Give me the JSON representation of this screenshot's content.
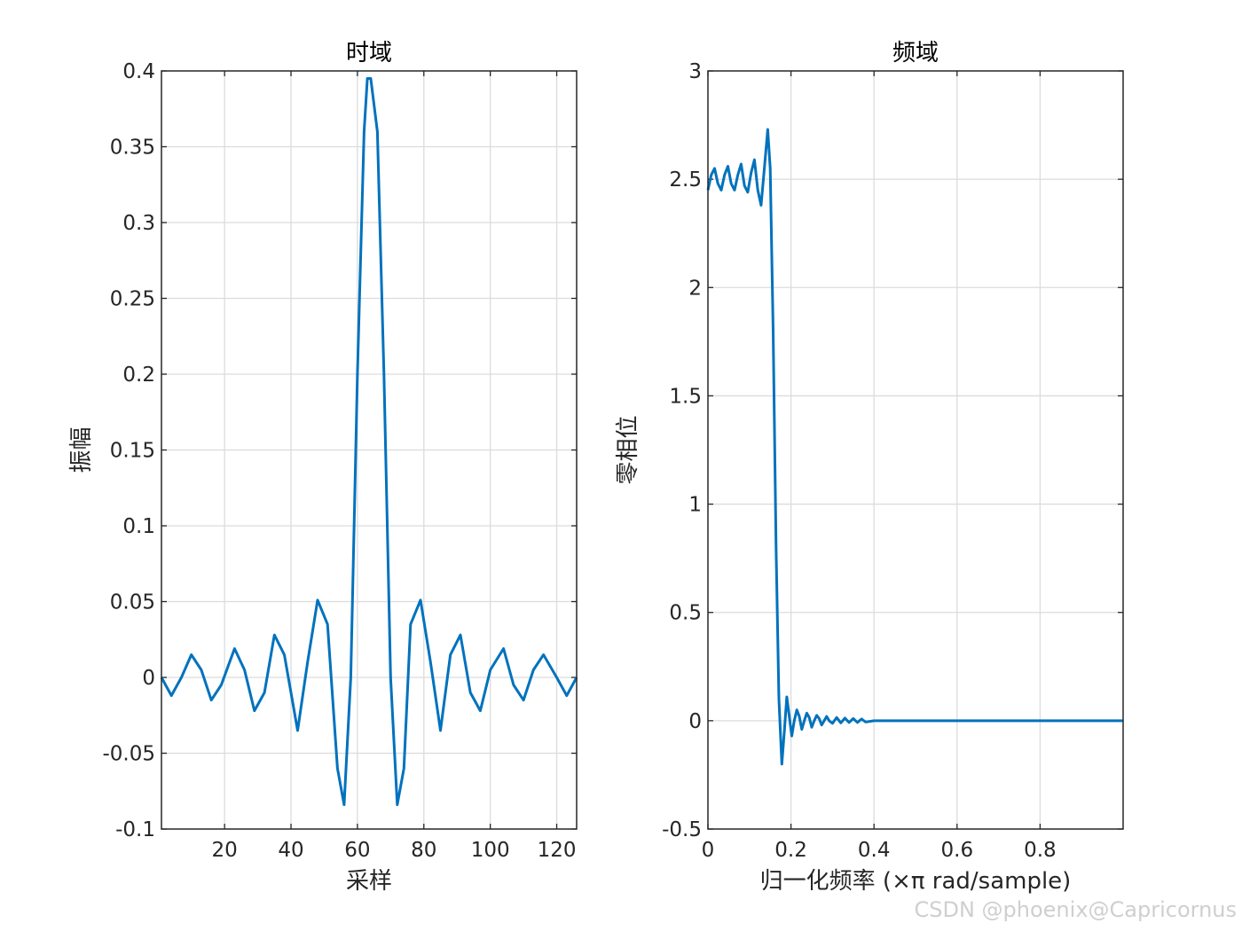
{
  "chart_data": [
    {
      "type": "line",
      "title": "时域",
      "xlabel": "采样",
      "ylabel": "振幅",
      "xlim": [
        1,
        126
      ],
      "ylim": [
        -0.1,
        0.4
      ],
      "xticks": [
        20,
        40,
        60,
        80,
        100,
        120
      ],
      "xtick_labels": [
        "20",
        "40",
        "60",
        "80",
        "100",
        "120"
      ],
      "yticks": [
        -0.1,
        -0.05,
        0,
        0.05,
        0.1,
        0.15,
        0.2,
        0.25,
        0.3,
        0.35,
        0.4
      ],
      "ytick_labels": [
        "-0.1",
        "-0.05",
        "0",
        "0.05",
        "0.1",
        "0.15",
        "0.2",
        "0.25",
        "0.3",
        "0.35",
        "0.4"
      ],
      "grid": true,
      "color": "#0072BD",
      "series": [
        {
          "x": [
            1,
            4,
            7,
            10,
            13,
            16,
            19,
            23,
            26,
            29,
            32,
            35,
            38,
            42,
            45,
            48,
            51,
            54,
            56,
            58,
            60,
            62,
            63,
            64,
            66,
            68,
            70,
            72,
            74,
            76,
            79,
            82,
            85,
            88,
            91,
            94,
            97,
            100,
            104,
            107,
            110,
            113,
            116,
            120,
            123,
            126
          ],
          "y": [
            0,
            -0.012,
            0,
            0.015,
            0.005,
            -0.015,
            -0.005,
            0.019,
            0.005,
            -0.022,
            -0.01,
            0.028,
            0.015,
            -0.035,
            0.01,
            0.051,
            0.035,
            -0.06,
            -0.084,
            0.0,
            0.2,
            0.36,
            0.395,
            0.395,
            0.36,
            0.2,
            0.0,
            -0.084,
            -0.06,
            0.035,
            0.051,
            0.01,
            -0.035,
            0.015,
            0.028,
            -0.01,
            -0.022,
            0.005,
            0.019,
            -0.005,
            -0.015,
            0.005,
            0.015,
            0,
            -0.012,
            0
          ]
        }
      ]
    },
    {
      "type": "line",
      "title": "频域",
      "xlabel": "归一化频率  (×π rad/sample)",
      "ylabel": "零相位",
      "xlim": [
        0,
        1
      ],
      "ylim": [
        -0.5,
        3
      ],
      "xticks": [
        0,
        0.2,
        0.4,
        0.6,
        0.8
      ],
      "xtick_labels": [
        "0",
        "0.2",
        "0.4",
        "0.6",
        "0.8"
      ],
      "yticks": [
        -0.5,
        0,
        0.5,
        1,
        1.5,
        2,
        2.5,
        3
      ],
      "ytick_labels": [
        "-0.5",
        "0",
        "0.5",
        "1",
        "1.5",
        "2",
        "2.5",
        "3"
      ],
      "grid": true,
      "color": "#0072BD",
      "series": [
        {
          "x": [
            0,
            0.008,
            0.016,
            0.024,
            0.032,
            0.04,
            0.048,
            0.056,
            0.064,
            0.072,
            0.08,
            0.088,
            0.096,
            0.104,
            0.112,
            0.12,
            0.128,
            0.136,
            0.144,
            0.15,
            0.157,
            0.164,
            0.171,
            0.178,
            0.184,
            0.19,
            0.196,
            0.202,
            0.208,
            0.214,
            0.22,
            0.226,
            0.232,
            0.238,
            0.244,
            0.25,
            0.256,
            0.262,
            0.268,
            0.274,
            0.28,
            0.286,
            0.292,
            0.3,
            0.31,
            0.32,
            0.33,
            0.34,
            0.35,
            0.36,
            0.37,
            0.38,
            0.4,
            0.5,
            0.6,
            0.7,
            0.8,
            0.9,
            1.0
          ],
          "y": [
            2.45,
            2.52,
            2.55,
            2.48,
            2.45,
            2.52,
            2.56,
            2.48,
            2.45,
            2.52,
            2.57,
            2.47,
            2.44,
            2.53,
            2.59,
            2.45,
            2.38,
            2.55,
            2.73,
            2.55,
            1.8,
            0.8,
            0.1,
            -0.2,
            -0.05,
            0.11,
            0.02,
            -0.07,
            0.0,
            0.05,
            0.02,
            -0.04,
            0.0,
            0.035,
            0.015,
            -0.03,
            0.0,
            0.025,
            0.01,
            -0.02,
            0.0,
            0.02,
            0.0,
            -0.012,
            0.015,
            -0.01,
            0.012,
            -0.008,
            0.01,
            -0.008,
            0.008,
            -0.006,
            0.0,
            0.0,
            0.0,
            0.0,
            0.0,
            0.0,
            0.0
          ]
        }
      ]
    }
  ],
  "watermark": "CSDN @phoenix@Capricornus"
}
